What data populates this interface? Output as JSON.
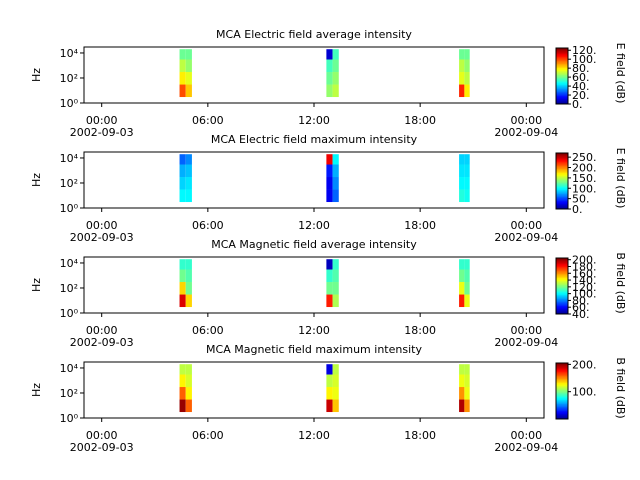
{
  "chart_data": [
    {
      "type": "spectrogram",
      "title": "MCA  Electric field average intensity",
      "ylabel": "Hz",
      "colorbar_label": "E field (dB)",
      "xlim": [
        -1,
        25
      ],
      "xticks": [
        {
          "value": 0,
          "label": "00:00"
        },
        {
          "value": 6,
          "label": "06:00"
        },
        {
          "value": 12,
          "label": "12:00"
        },
        {
          "value": 18,
          "label": "18:00"
        },
        {
          "value": 24,
          "label": "00:00"
        }
      ],
      "date_labels": [
        {
          "value": 0,
          "label": "2002-09-03"
        },
        {
          "value": 24,
          "label": "2002-09-04"
        }
      ],
      "ylim": [
        1,
        30000
      ],
      "log_y": true,
      "yticks": [
        {
          "value": 1,
          "label": "10⁰"
        },
        {
          "value": 100,
          "label": "10²"
        },
        {
          "value": 10000,
          "label": "10⁴"
        }
      ],
      "zlim": [
        0,
        125
      ],
      "zticks": [
        {
          "value": 0,
          "label": "0."
        },
        {
          "value": 20,
          "label": "20."
        },
        {
          "value": 40,
          "label": "40."
        },
        {
          "value": 60,
          "label": "60."
        },
        {
          "value": 80,
          "label": "80."
        },
        {
          "value": 100,
          "label": "100."
        },
        {
          "value": 120,
          "label": "120."
        }
      ],
      "f_edges": [
        3,
        30,
        300,
        3000,
        20000
      ],
      "blocks": [
        {
          "t": [
            4.4,
            4.75,
            5.1
          ],
          "values": [
            [
              100,
              80,
              70,
              60
            ],
            [
              85,
              75,
              65,
              60
            ]
          ]
        },
        {
          "t": [
            12.7,
            13.05,
            13.4
          ],
          "values": [
            [
              65,
              60,
              55,
              10
            ],
            [
              70,
              65,
              60,
              55
            ]
          ]
        },
        {
          "t": [
            20.2,
            20.5,
            20.8
          ],
          "values": [
            [
              105,
              75,
              70,
              60
            ],
            [
              80,
              70,
              65,
              60
            ]
          ]
        }
      ]
    },
    {
      "type": "spectrogram",
      "title": "MCA  Electric field maximum intensity",
      "ylabel": "Hz",
      "colorbar_label": "E field (dB)",
      "xlim": [
        -1,
        25
      ],
      "xticks": [
        {
          "value": 0,
          "label": "00:00"
        },
        {
          "value": 6,
          "label": "06:00"
        },
        {
          "value": 12,
          "label": "12:00"
        },
        {
          "value": 18,
          "label": "18:00"
        },
        {
          "value": 24,
          "label": "00:00"
        }
      ],
      "date_labels": [
        {
          "value": 0,
          "label": "2002-09-03"
        },
        {
          "value": 24,
          "label": "2002-09-04"
        }
      ],
      "ylim": [
        1,
        30000
      ],
      "log_y": true,
      "yticks": [
        {
          "value": 1,
          "label": "10⁰"
        },
        {
          "value": 100,
          "label": "10²"
        },
        {
          "value": 10000,
          "label": "10⁴"
        }
      ],
      "zlim": [
        0,
        270
      ],
      "zticks": [
        {
          "value": 0,
          "label": "0."
        },
        {
          "value": 50,
          "label": "50."
        },
        {
          "value": 100,
          "label": "100."
        },
        {
          "value": 150,
          "label": "150."
        },
        {
          "value": 200,
          "label": "200."
        },
        {
          "value": 250,
          "label": "250."
        }
      ],
      "f_edges": [
        3,
        30,
        300,
        3000,
        20000
      ],
      "blocks": [
        {
          "t": [
            4.4,
            4.75,
            5.1
          ],
          "values": [
            [
              100,
              90,
              80,
              60
            ],
            [
              100,
              95,
              85,
              70
            ]
          ]
        },
        {
          "t": [
            12.7,
            13.05,
            13.4
          ],
          "values": [
            [
              30,
              30,
              40,
              240
            ],
            [
              60,
              70,
              80,
              100
            ]
          ]
        },
        {
          "t": [
            20.2,
            20.5,
            20.8
          ],
          "values": [
            [
              110,
              100,
              95,
              90
            ],
            [
              105,
              100,
              95,
              90
            ]
          ]
        }
      ]
    },
    {
      "type": "spectrogram",
      "title": "MCA  Magnetic field average intensity",
      "ylabel": "Hz",
      "colorbar_label": "B field (dB)",
      "xlim": [
        -1,
        25
      ],
      "xticks": [
        {
          "value": 0,
          "label": "00:00"
        },
        {
          "value": 6,
          "label": "06:00"
        },
        {
          "value": 12,
          "label": "12:00"
        },
        {
          "value": 18,
          "label": "18:00"
        },
        {
          "value": 24,
          "label": "00:00"
        }
      ],
      "date_labels": [
        {
          "value": 0,
          "label": "2002-09-03"
        },
        {
          "value": 24,
          "label": "2002-09-04"
        }
      ],
      "ylim": [
        1,
        30000
      ],
      "log_y": true,
      "yticks": [
        {
          "value": 1,
          "label": "10⁰"
        },
        {
          "value": 100,
          "label": "10²"
        },
        {
          "value": 10000,
          "label": "10⁴"
        }
      ],
      "zlim": [
        40,
        205
      ],
      "zticks": [
        {
          "value": 40,
          "label": "40."
        },
        {
          "value": 60,
          "label": "60."
        },
        {
          "value": 80,
          "label": "80."
        },
        {
          "value": 100,
          "label": "100."
        },
        {
          "value": 120,
          "label": "120."
        },
        {
          "value": 140,
          "label": "140."
        },
        {
          "value": 160,
          "label": "160."
        },
        {
          "value": 180,
          "label": "180."
        },
        {
          "value": 200,
          "label": "200."
        }
      ],
      "f_edges": [
        3,
        30,
        300,
        3000,
        20000
      ],
      "blocks": [
        {
          "t": [
            4.4,
            4.75,
            5.1
          ],
          "values": [
            [
              190,
              150,
              120,
              110
            ],
            [
              150,
              120,
              115,
              110
            ]
          ]
        },
        {
          "t": [
            12.7,
            13.05,
            13.4
          ],
          "values": [
            [
              180,
              120,
              110,
              50
            ],
            [
              130,
              120,
              115,
              110
            ]
          ]
        },
        {
          "t": [
            20.2,
            20.5,
            20.8
          ],
          "values": [
            [
              180,
              140,
              120,
              110
            ],
            [
              140,
              120,
              115,
              110
            ]
          ]
        }
      ]
    },
    {
      "type": "spectrogram",
      "title": "MCA  Magnetic field maximum intensity",
      "ylabel": "Hz",
      "colorbar_label": "B field (dB)",
      "xlim": [
        -1,
        25
      ],
      "xticks": [
        {
          "value": 0,
          "label": "00:00"
        },
        {
          "value": 6,
          "label": "06:00"
        },
        {
          "value": 12,
          "label": "12:00"
        },
        {
          "value": 18,
          "label": "18:00"
        },
        {
          "value": 24,
          "label": "00:00"
        }
      ],
      "date_labels": [
        {
          "value": 0,
          "label": "2002-09-03"
        },
        {
          "value": 24,
          "label": "2002-09-04"
        }
      ],
      "ylim": [
        1,
        30000
      ],
      "log_y": true,
      "yticks": [
        {
          "value": 1,
          "label": "10⁰"
        },
        {
          "value": 100,
          "label": "10²"
        },
        {
          "value": 10000,
          "label": "10⁴"
        }
      ],
      "zlim": [
        0,
        205
      ],
      "zticks": [
        {
          "value": 100,
          "label": "100."
        },
        {
          "value": 200,
          "label": "200."
        }
      ],
      "f_edges": [
        3,
        30,
        300,
        3000,
        20000
      ],
      "blocks": [
        {
          "t": [
            4.4,
            4.75,
            5.1
          ],
          "values": [
            [
              200,
              160,
              130,
              115
            ],
            [
              160,
              130,
              120,
              115
            ]
          ]
        },
        {
          "t": [
            12.7,
            13.05,
            13.4
          ],
          "values": [
            [
              190,
              130,
              115,
              20
            ],
            [
              140,
              125,
              120,
              115
            ]
          ]
        },
        {
          "t": [
            20.2,
            20.5,
            20.8
          ],
          "values": [
            [
              195,
              150,
              125,
              115
            ],
            [
              150,
              125,
              120,
              115
            ]
          ]
        }
      ]
    }
  ]
}
